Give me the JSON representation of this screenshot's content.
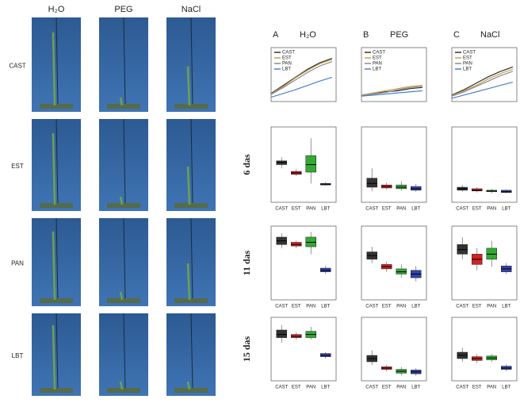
{
  "photos": {
    "columns": [
      "H₂O",
      "PEG",
      "NaCl"
    ],
    "rows": [
      "CAST",
      "EST",
      "PAN",
      "LBT"
    ]
  },
  "panels": [
    {
      "letter": "A",
      "treatment": "H₂O"
    },
    {
      "letter": "B",
      "treatment": "PEG"
    },
    {
      "letter": "C",
      "treatment": "NaCl"
    }
  ],
  "timepoints": [
    "6 das",
    "11 das",
    "15 das"
  ],
  "chart_data": [
    {
      "type": "line",
      "x": [
        0,
        3,
        6,
        9,
        12,
        15
      ],
      "xlim": [
        0,
        16
      ],
      "ylim": [
        0,
        100
      ],
      "series": [
        {
          "name": "CAST",
          "color": "#333333",
          "values": [
            15,
            30,
            45,
            60,
            72,
            80
          ]
        },
        {
          "name": "EST",
          "color": "#c8a050",
          "values": [
            14,
            28,
            44,
            58,
            70,
            78
          ]
        },
        {
          "name": "PAN",
          "color": "#8a8a8a",
          "values": [
            13,
            26,
            40,
            54,
            66,
            74
          ]
        },
        {
          "name": "LBT",
          "color": "#4a7fd0",
          "values": [
            8,
            15,
            22,
            30,
            38,
            45
          ]
        }
      ]
    },
    {
      "type": "line",
      "x": [
        0,
        3,
        6,
        9,
        12,
        15
      ],
      "xlim": [
        0,
        16
      ],
      "ylim": [
        0,
        100
      ],
      "series": [
        {
          "name": "CAST",
          "color": "#333333",
          "values": [
            12,
            15,
            18,
            20,
            24,
            26
          ]
        },
        {
          "name": "EST",
          "color": "#c8a050",
          "values": [
            12,
            16,
            20,
            24,
            28,
            30
          ]
        },
        {
          "name": "PAN",
          "color": "#8a8a8a",
          "values": [
            11,
            14,
            17,
            22,
            26,
            28
          ]
        },
        {
          "name": "LBT",
          "color": "#4a7fd0",
          "values": [
            10,
            12,
            14,
            16,
            18,
            20
          ]
        }
      ]
    },
    {
      "type": "line",
      "x": [
        0,
        3,
        6,
        9,
        12,
        15
      ],
      "xlim": [
        0,
        16
      ],
      "ylim": [
        0,
        100
      ],
      "series": [
        {
          "name": "CAST",
          "color": "#333333",
          "values": [
            12,
            22,
            34,
            46,
            56,
            64
          ]
        },
        {
          "name": "EST",
          "color": "#c8a050",
          "values": [
            11,
            20,
            30,
            42,
            52,
            60
          ]
        },
        {
          "name": "PAN",
          "color": "#8a8a8a",
          "values": [
            10,
            18,
            28,
            38,
            48,
            56
          ]
        },
        {
          "name": "LBT",
          "color": "#4a7fd0",
          "values": [
            6,
            12,
            18,
            24,
            30,
            36
          ]
        }
      ]
    },
    {
      "type": "box",
      "categories": [
        "CAST",
        "EST",
        "PAN",
        "LBT"
      ],
      "colors": [
        "#333333",
        "#d22222",
        "#33aa33",
        "#3344aa"
      ],
      "ylim": [
        0,
        100
      ],
      "stats": [
        [
          45,
          50,
          53,
          55,
          60
        ],
        [
          35,
          37,
          39,
          41,
          44
        ],
        [
          25,
          40,
          50,
          62,
          85
        ],
        [
          22,
          23,
          24,
          25,
          27
        ]
      ]
    },
    {
      "type": "box",
      "categories": [
        "CAST",
        "EST",
        "PAN",
        "LBT"
      ],
      "colors": [
        "#333333",
        "#d22222",
        "#33aa33",
        "#3344aa"
      ],
      "ylim": [
        0,
        100
      ],
      "stats": [
        [
          15,
          20,
          25,
          32,
          45
        ],
        [
          17,
          19,
          21,
          23,
          26
        ],
        [
          15,
          18,
          20,
          23,
          28
        ],
        [
          14,
          16,
          18,
          21,
          24
        ]
      ]
    },
    {
      "type": "box",
      "categories": [
        "CAST",
        "EST",
        "PAN",
        "LBT"
      ],
      "colors": [
        "#333333",
        "#d22222",
        "#33aa33",
        "#3344aa"
      ],
      "ylim": [
        0,
        100
      ],
      "stats": [
        [
          14,
          16,
          18,
          20,
          23
        ],
        [
          13,
          15,
          16,
          18,
          20
        ],
        [
          12,
          14,
          15,
          16,
          18
        ],
        [
          12,
          13,
          14,
          16,
          17
        ]
      ]
    },
    {
      "type": "box",
      "categories": [
        "CAST",
        "EST",
        "PAN",
        "LBT"
      ],
      "colors": [
        "#333333",
        "#d22222",
        "#33aa33",
        "#3344aa"
      ],
      "ylim": [
        0,
        100
      ],
      "stats": [
        [
          70,
          75,
          80,
          85,
          90
        ],
        [
          70,
          73,
          75,
          78,
          80
        ],
        [
          62,
          72,
          78,
          85,
          92
        ],
        [
          35,
          38,
          40,
          43,
          46
        ]
      ]
    },
    {
      "type": "box",
      "categories": [
        "CAST",
        "EST",
        "PAN",
        "LBT"
      ],
      "colors": [
        "#333333",
        "#d22222",
        "#33aa33",
        "#3344aa"
      ],
      "ylim": [
        0,
        100
      ],
      "stats": [
        [
          50,
          55,
          60,
          65,
          72
        ],
        [
          38,
          42,
          45,
          48,
          52
        ],
        [
          30,
          35,
          38,
          42,
          48
        ],
        [
          25,
          30,
          35,
          40,
          46
        ]
      ]
    },
    {
      "type": "box",
      "categories": [
        "CAST",
        "EST",
        "PAN",
        "LBT"
      ],
      "colors": [
        "#333333",
        "#d22222",
        "#33aa33",
        "#3344aa"
      ],
      "ylim": [
        0,
        100
      ],
      "stats": [
        [
          55,
          62,
          68,
          75,
          85
        ],
        [
          40,
          48,
          55,
          62,
          70
        ],
        [
          45,
          55,
          62,
          70,
          80
        ],
        [
          35,
          38,
          42,
          46,
          50
        ]
      ]
    },
    {
      "type": "box",
      "categories": [
        "CAST",
        "EST",
        "PAN",
        "LBT"
      ],
      "colors": [
        "#333333",
        "#d22222",
        "#33aa33",
        "#3344aa"
      ],
      "ylim": [
        0,
        100
      ],
      "stats": [
        [
          60,
          68,
          73,
          80,
          88
        ],
        [
          65,
          68,
          70,
          73,
          76
        ],
        [
          65,
          68,
          73,
          78,
          85
        ],
        [
          35,
          38,
          40,
          43,
          45
        ]
      ]
    },
    {
      "type": "box",
      "categories": [
        "CAST",
        "EST",
        "PAN",
        "LBT"
      ],
      "colors": [
        "#333333",
        "#d22222",
        "#33aa33",
        "#3344aa"
      ],
      "ylim": [
        0,
        100
      ],
      "stats": [
        [
          25,
          30,
          35,
          40,
          48
        ],
        [
          15,
          18,
          20,
          22,
          25
        ],
        [
          8,
          12,
          15,
          18,
          22
        ],
        [
          8,
          11,
          14,
          17,
          20
        ]
      ]
    },
    {
      "type": "box",
      "categories": [
        "CAST",
        "EST",
        "PAN",
        "LBT"
      ],
      "colors": [
        "#333333",
        "#d22222",
        "#33aa33",
        "#3344aa"
      ],
      "ylim": [
        0,
        100
      ],
      "stats": [
        [
          30,
          35,
          40,
          45,
          52
        ],
        [
          28,
          32,
          35,
          38,
          42
        ],
        [
          30,
          33,
          36,
          39,
          42
        ],
        [
          15,
          18,
          20,
          23,
          26
        ]
      ]
    }
  ]
}
